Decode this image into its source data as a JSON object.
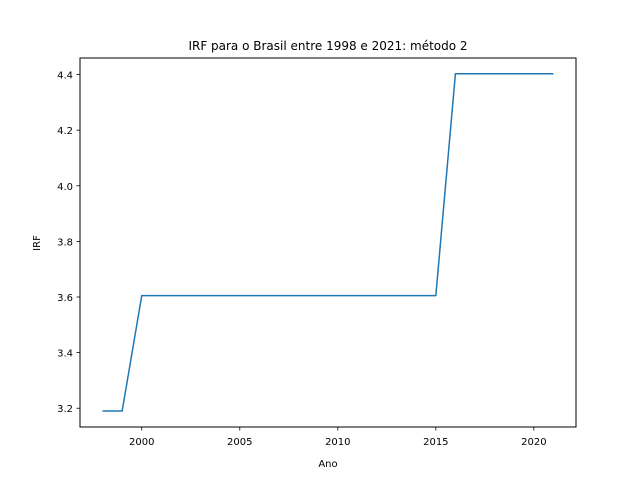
{
  "chart_data": {
    "type": "line",
    "title": "IRF para o Brasil entre 1998 e 2021: método 2",
    "xlabel": "Ano",
    "ylabel": "IRF",
    "xlim": [
      1996.85,
      2022.15
    ],
    "ylim": [
      3.1325,
      4.4595
    ],
    "x_ticks": [
      2000,
      2005,
      2010,
      2015,
      2020
    ],
    "y_ticks": [
      3.2,
      3.4,
      3.6,
      3.8,
      4.0,
      4.2,
      4.4
    ],
    "x_tick_labels": [
      "2000",
      "2005",
      "2010",
      "2015",
      "2020"
    ],
    "y_tick_labels": [
      "3.2",
      "3.4",
      "3.6",
      "3.8",
      "4.0",
      "4.2",
      "4.4"
    ],
    "grid": false,
    "series": [
      {
        "color": "#1f77b4",
        "x": [
          1998,
          1999,
          2000,
          2001,
          2002,
          2003,
          2004,
          2005,
          2006,
          2007,
          2008,
          2009,
          2010,
          2011,
          2012,
          2013,
          2014,
          2015,
          2016,
          2017,
          2018,
          2019,
          2020,
          2021
        ],
        "y": [
          3.19,
          3.19,
          3.605,
          3.605,
          3.605,
          3.605,
          3.605,
          3.605,
          3.605,
          3.605,
          3.605,
          3.605,
          3.605,
          3.605,
          3.605,
          3.605,
          3.605,
          3.605,
          4.403,
          4.403,
          4.403,
          4.403,
          4.403,
          4.403
        ]
      }
    ]
  }
}
